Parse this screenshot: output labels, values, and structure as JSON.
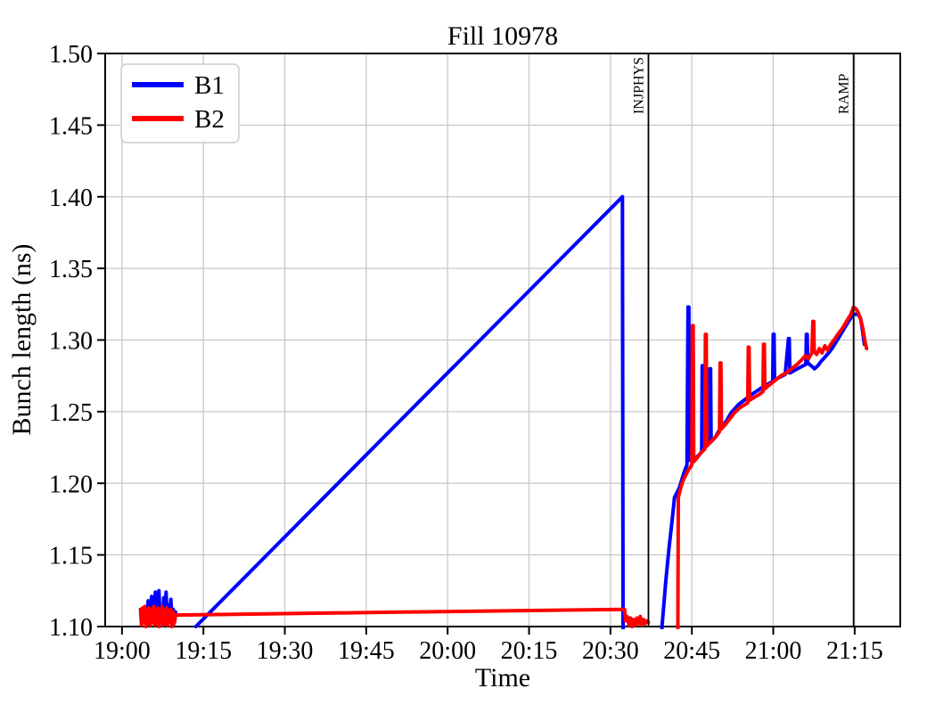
{
  "figure": {
    "background": "#ffffff"
  },
  "chart_data": {
    "type": "line",
    "title": "Fill 10978",
    "xlabel": "Time",
    "ylabel": "Bunch length (ns)",
    "x_unit": "minutes after 19:00",
    "xlim": [
      -3.1,
      143.4
    ],
    "ylim": [
      1.1,
      1.5
    ],
    "grid": true,
    "grid_color": "#c8c8c8",
    "spine_color": "#000000",
    "x_ticks": [
      {
        "m": 0,
        "label": "19:00"
      },
      {
        "m": 15,
        "label": "19:15"
      },
      {
        "m": 30,
        "label": "19:30"
      },
      {
        "m": 45,
        "label": "19:45"
      },
      {
        "m": 60,
        "label": "20:00"
      },
      {
        "m": 75,
        "label": "20:15"
      },
      {
        "m": 90,
        "label": "20:30"
      },
      {
        "m": 105,
        "label": "20:45"
      },
      {
        "m": 120,
        "label": "21:00"
      },
      {
        "m": 135,
        "label": "21:15"
      }
    ],
    "y_ticks": [
      {
        "v": 1.1,
        "label": "1.10"
      },
      {
        "v": 1.15,
        "label": "1.15"
      },
      {
        "v": 1.2,
        "label": "1.20"
      },
      {
        "v": 1.25,
        "label": "1.25"
      },
      {
        "v": 1.3,
        "label": "1.30"
      },
      {
        "v": 1.35,
        "label": "1.35"
      },
      {
        "v": 1.4,
        "label": "1.40"
      },
      {
        "v": 1.45,
        "label": "1.45"
      },
      {
        "v": 1.5,
        "label": "1.50"
      }
    ],
    "legend": {
      "position": "upper left",
      "entries": [
        {
          "name": "B1",
          "color": "#0000ff"
        },
        {
          "name": "B2",
          "color": "#ff0000"
        }
      ]
    },
    "annotations": [
      {
        "label": "INJPHYS",
        "m": 97.0,
        "time": "20:37",
        "color": "#000000"
      },
      {
        "label": "RAMP",
        "m": 134.8,
        "time": "21:15",
        "color": "#000000"
      }
    ],
    "series": [
      {
        "name": "B1",
        "color": "#0000ff",
        "linewidth": 4,
        "segments": [
          [
            [
              4.6,
              1.103
            ],
            [
              4.82,
              1.118
            ],
            [
              5.04,
              1.102
            ],
            [
              5.26,
              1.115
            ],
            [
              5.48,
              1.121
            ],
            [
              5.7,
              1.104
            ],
            [
              5.92,
              1.112
            ],
            [
              6.14,
              1.124
            ],
            [
              6.36,
              1.103
            ],
            [
              6.58,
              1.116
            ],
            [
              6.8,
              1.125
            ],
            [
              7.02,
              1.105
            ],
            [
              7.24,
              1.113
            ],
            [
              7.46,
              1.102
            ],
            [
              7.68,
              1.12
            ],
            [
              7.9,
              1.107
            ],
            [
              8.12,
              1.124
            ],
            [
              8.34,
              1.103
            ],
            [
              8.56,
              1.115
            ],
            [
              8.78,
              1.104
            ],
            [
              9.0,
              1.119
            ],
            [
              9.22,
              1.102
            ],
            [
              9.44,
              1.112
            ],
            [
              9.66,
              1.103
            ],
            [
              9.88,
              1.11
            ]
          ],
          [
            [
              13.6,
              1.1
            ],
            [
              92.2,
              1.4
            ],
            [
              92.35,
              1.02
            ]
          ],
          [
            [
              99.2,
              1.05
            ],
            [
              99.5,
              1.1
            ],
            [
              100.2,
              1.132
            ],
            [
              100.8,
              1.155
            ],
            [
              101.3,
              1.172
            ],
            [
              101.8,
              1.19
            ],
            [
              102.2,
              1.193
            ],
            [
              102.7,
              1.197
            ],
            [
              103.2,
              1.203
            ],
            [
              103.7,
              1.209
            ],
            [
              104.1,
              1.213
            ],
            [
              104.3,
              1.323
            ],
            [
              104.45,
              1.323
            ],
            [
              104.55,
              1.216
            ],
            [
              105.2,
              1.216
            ],
            [
              105.8,
              1.218
            ],
            [
              106.4,
              1.22
            ],
            [
              106.8,
              1.222
            ],
            [
              106.9,
              1.282
            ],
            [
              107.05,
              1.282
            ],
            [
              107.15,
              1.224
            ],
            [
              107.9,
              1.227
            ],
            [
              108.3,
              1.28
            ],
            [
              108.45,
              1.28
            ],
            [
              108.55,
              1.229
            ],
            [
              109.3,
              1.232
            ],
            [
              109.9,
              1.236
            ],
            [
              110.6,
              1.24
            ],
            [
              111.3,
              1.243
            ],
            [
              111.9,
              1.247
            ],
            [
              112.4,
              1.25
            ],
            [
              112.9,
              1.252
            ],
            [
              113.6,
              1.255
            ],
            [
              114.3,
              1.257
            ],
            [
              115,
              1.259
            ],
            [
              115.7,
              1.261
            ],
            [
              116.4,
              1.263
            ],
            [
              117.2,
              1.265
            ],
            [
              118,
              1.267
            ],
            [
              118.9,
              1.269
            ],
            [
              119.9,
              1.271
            ],
            [
              120,
              1.304
            ],
            [
              120.15,
              1.304
            ],
            [
              120.25,
              1.272
            ],
            [
              121.2,
              1.274
            ],
            [
              122.2,
              1.276
            ],
            [
              122.8,
              1.301
            ],
            [
              122.95,
              1.301
            ],
            [
              123.05,
              1.277
            ],
            [
              124,
              1.279
            ],
            [
              125,
              1.281
            ],
            [
              126,
              1.283
            ],
            [
              126.1,
              1.304
            ],
            [
              126.25,
              1.304
            ],
            [
              126.35,
              1.284
            ],
            [
              127,
              1.282
            ],
            [
              127.6,
              1.28
            ],
            [
              128.2,
              1.282
            ],
            [
              128.8,
              1.285
            ],
            [
              129.5,
              1.288
            ],
            [
              130.2,
              1.291
            ],
            [
              131,
              1.295
            ],
            [
              131.8,
              1.3
            ],
            [
              132.6,
              1.305
            ],
            [
              133.4,
              1.31
            ],
            [
              134.2,
              1.315
            ],
            [
              134.8,
              1.318
            ],
            [
              135.6,
              1.318
            ],
            [
              136.1,
              1.315
            ],
            [
              136.5,
              1.305
            ],
            [
              136.8,
              1.297
            ]
          ]
        ]
      },
      {
        "name": "B2",
        "color": "#ff0000",
        "linewidth": 4,
        "segments": [
          [
            [
              3.4,
              1.112
            ],
            [
              3.6,
              1.101
            ],
            [
              3.8,
              1.113
            ],
            [
              4,
              1.103
            ],
            [
              4.2,
              1.114
            ],
            [
              4.4,
              1.1
            ],
            [
              4.6,
              1.111
            ],
            [
              4.8,
              1.102
            ],
            [
              5,
              1.113
            ],
            [
              5.2,
              1.101
            ],
            [
              5.4,
              1.112
            ],
            [
              5.6,
              1.103
            ],
            [
              5.8,
              1.114
            ],
            [
              6,
              1.101
            ],
            [
              6.2,
              1.112
            ],
            [
              6.4,
              1.102
            ],
            [
              6.6,
              1.113
            ],
            [
              6.8,
              1.1
            ],
            [
              7,
              1.111
            ],
            [
              7.2,
              1.103
            ],
            [
              7.4,
              1.114
            ],
            [
              7.6,
              1.101
            ],
            [
              7.8,
              1.112
            ],
            [
              8,
              1.102
            ],
            [
              8.2,
              1.113
            ],
            [
              8.4,
              1.101
            ],
            [
              8.6,
              1.111
            ],
            [
              8.8,
              1.103
            ],
            [
              9,
              1.112
            ],
            [
              9.2,
              1.1
            ],
            [
              9.4,
              1.11
            ],
            [
              9.6,
              1.102
            ],
            [
              9.9,
              1.108
            ]
          ],
          [
            [
              9.9,
              1.108
            ],
            [
              50,
              1.11
            ],
            [
              92.6,
              1.112
            ],
            [
              92.8,
              1.104
            ],
            [
              93.1,
              1.107
            ],
            [
              93.4,
              1.101
            ],
            [
              93.7,
              1.106
            ],
            [
              94,
              1.1
            ],
            [
              94.3,
              1.105
            ],
            [
              94.6,
              1.101
            ],
            [
              94.9,
              1.106
            ],
            [
              95.2,
              1.102
            ],
            [
              95.5,
              1.107
            ],
            [
              95.8,
              1.101
            ],
            [
              96.1,
              1.105
            ],
            [
              96.4,
              1.102
            ],
            [
              96.7,
              1.104
            ],
            [
              97,
              1.103
            ]
          ],
          [
            [
              102.35,
              1.03
            ],
            [
              102.5,
              1.19
            ],
            [
              102.9,
              1.196
            ],
            [
              103.3,
              1.201
            ],
            [
              103.9,
              1.206
            ],
            [
              104.5,
              1.21
            ],
            [
              105,
              1.213
            ],
            [
              105.1,
              1.31
            ],
            [
              105.25,
              1.31
            ],
            [
              105.35,
              1.215
            ],
            [
              106,
              1.218
            ],
            [
              106.6,
              1.221
            ],
            [
              107.4,
              1.224
            ],
            [
              107.5,
              1.304
            ],
            [
              107.65,
              1.304
            ],
            [
              107.75,
              1.226
            ],
            [
              108.5,
              1.229
            ],
            [
              109.3,
              1.232
            ],
            [
              110.1,
              1.236
            ],
            [
              110.2,
              1.284
            ],
            [
              110.35,
              1.284
            ],
            [
              110.45,
              1.238
            ],
            [
              111.2,
              1.241
            ],
            [
              112,
              1.245
            ],
            [
              112.8,
              1.249
            ],
            [
              113.6,
              1.252
            ],
            [
              114.4,
              1.254
            ],
            [
              115.3,
              1.256
            ],
            [
              115.4,
              1.295
            ],
            [
              115.55,
              1.295
            ],
            [
              115.65,
              1.258
            ],
            [
              116.5,
              1.26
            ],
            [
              117.4,
              1.262
            ],
            [
              118.1,
              1.264
            ],
            [
              118.2,
              1.297
            ],
            [
              118.35,
              1.297
            ],
            [
              118.45,
              1.266
            ],
            [
              119.4,
              1.269
            ],
            [
              120.4,
              1.272
            ],
            [
              121.4,
              1.275
            ],
            [
              122.4,
              1.277
            ],
            [
              123.4,
              1.28
            ],
            [
              124.4,
              1.283
            ],
            [
              125.2,
              1.286
            ],
            [
              125.9,
              1.289
            ],
            [
              126.5,
              1.287
            ],
            [
              127.1,
              1.291
            ],
            [
              127.3,
              1.313
            ],
            [
              127.45,
              1.313
            ],
            [
              127.55,
              1.292
            ],
            [
              128,
              1.29
            ],
            [
              128.5,
              1.294
            ],
            [
              129,
              1.291
            ],
            [
              129.5,
              1.296
            ],
            [
              130,
              1.293
            ],
            [
              130.6,
              1.297
            ],
            [
              131.2,
              1.3
            ],
            [
              131.9,
              1.304
            ],
            [
              132.7,
              1.308
            ],
            [
              133.5,
              1.313
            ],
            [
              134.3,
              1.318
            ],
            [
              134.8,
              1.323
            ],
            [
              135.4,
              1.321
            ],
            [
              136,
              1.316
            ],
            [
              136.5,
              1.308
            ],
            [
              136.9,
              1.299
            ],
            [
              137.2,
              1.294
            ]
          ]
        ]
      }
    ]
  }
}
